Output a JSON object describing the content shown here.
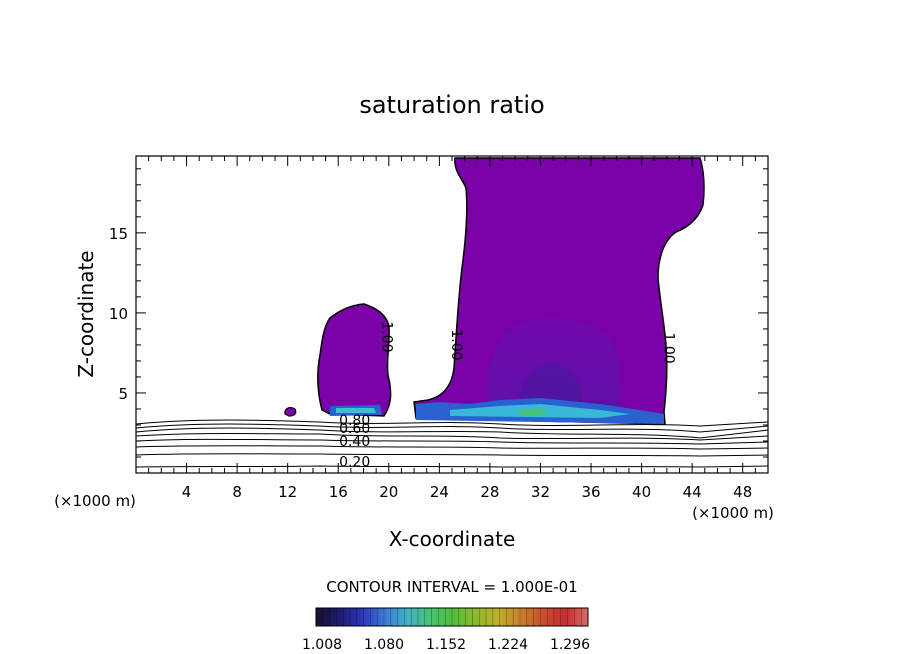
{
  "chart_data": {
    "type": "contour",
    "title": "saturation ratio",
    "xlabel": "X-coordinate",
    "ylabel": "Z-coordinate",
    "x_unit_left": "(×1000 m)",
    "x_unit_right": "(×1000 m)",
    "xlim": [
      0,
      50
    ],
    "ylim": [
      0,
      19.8
    ],
    "x_ticks": [
      4,
      8,
      12,
      16,
      20,
      24,
      28,
      32,
      36,
      40,
      44,
      48
    ],
    "y_ticks": [
      5,
      10,
      15
    ],
    "contour_interval_text": "CONTOUR INTERVAL = 1.000E-01",
    "contour_labels": [
      {
        "text": "1.00",
        "x": 19.5,
        "z": 8.5
      },
      {
        "text": "1.00",
        "x": 25.0,
        "z": 8.0
      },
      {
        "text": "1.00",
        "x": 41.8,
        "z": 7.8
      },
      {
        "text": "0.80",
        "x": 17.3,
        "z": 3.0
      },
      {
        "text": "0.60",
        "x": 17.3,
        "z": 2.5
      },
      {
        "text": "0.40",
        "x": 17.3,
        "z": 1.7
      },
      {
        "text": "0.20",
        "x": 17.3,
        "z": 0.4
      }
    ],
    "colorbar": {
      "tick_labels": [
        "1.008",
        "1.080",
        "1.152",
        "1.224",
        "1.296"
      ],
      "colors": [
        "#1a0f2e",
        "#1c1b6e",
        "#2c33b8",
        "#3a78d8",
        "#3fb1c4",
        "#46c47a",
        "#4fbf3a",
        "#8aba2c",
        "#bdb12a",
        "#c9812a",
        "#c8502e",
        "#c42f2f",
        "#d86a6a"
      ]
    },
    "cloud_color": "#7a00a8"
  }
}
